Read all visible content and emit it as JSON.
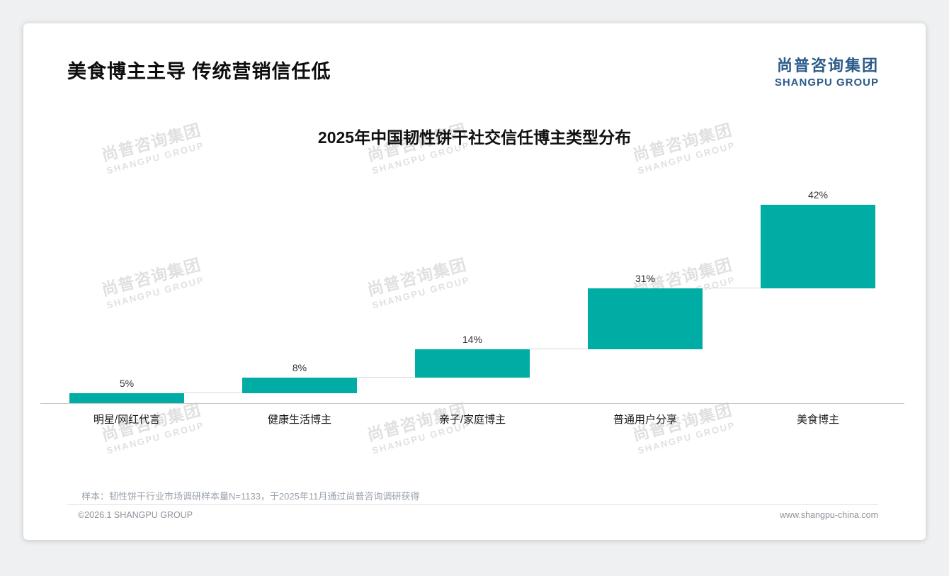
{
  "page": {
    "title": "美食博主主导 传统营销信任低"
  },
  "logo": {
    "name_cn": "尚普咨询集团",
    "name_en": "SHANGPU GROUP"
  },
  "watermark": {
    "line1": "尚普咨询集团",
    "line2": "SHANGPU GROUP"
  },
  "chart_data": {
    "type": "bar",
    "subtype": "waterfall-steps",
    "title": "2025年中国韧性饼干社交信任博主类型分布",
    "categories": [
      "明星/网红代言",
      "健康生活博主",
      "亲子/家庭博主",
      "普通用户分享",
      "美食博主"
    ],
    "values": [
      5,
      8,
      14,
      31,
      42
    ],
    "labels": [
      "5%",
      "8%",
      "14%",
      "31%",
      "42%"
    ],
    "xlabel": "",
    "ylabel": "",
    "ylim": [
      0,
      100
    ],
    "grid": false,
    "legend": null,
    "bar_color": "#00ADA4"
  },
  "footnote": "样本：韧性饼干行业市场调研样本量N=1133，于2025年11月通过尚普咨询调研获得",
  "footer": {
    "copyright": "©2026.1 SHANGPU GROUP",
    "website": "www.shangpu-china.com"
  },
  "colors": {
    "accent": "#00ADA4",
    "logo_blue": "#2A5B89",
    "watermark": "#E0E0E0",
    "baseline": "#C9C9C9"
  }
}
